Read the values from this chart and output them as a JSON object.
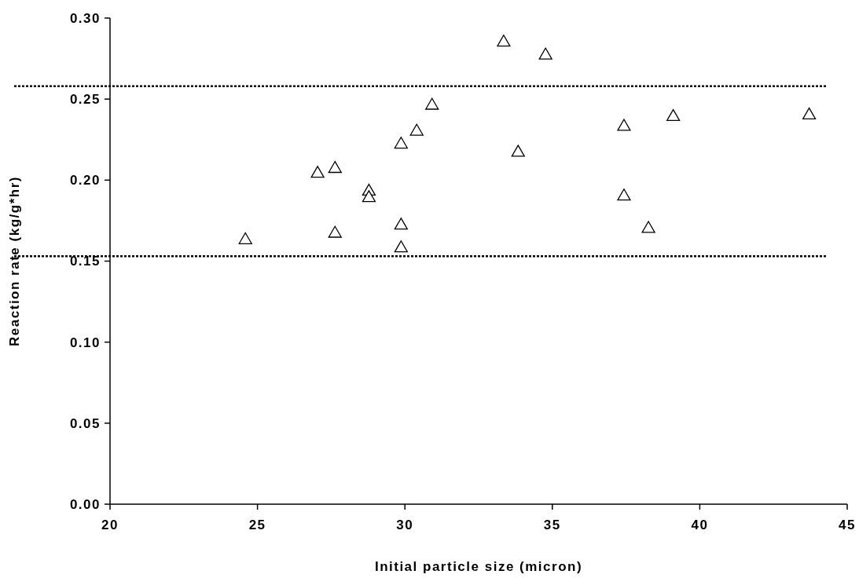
{
  "chart_data": {
    "type": "scatter",
    "xlabel": "Initial particle size (micron)",
    "ylabel": "Reaction rate (kg/g*hr)",
    "xlim": [
      20,
      45
    ],
    "xticks": [
      20,
      25,
      30,
      35,
      40,
      45
    ],
    "ylim": [
      0,
      0.3
    ],
    "yticks": [
      {
        "value": 0,
        "label": "0.00"
      },
      {
        "value": 0.05,
        "label": "0.05"
      },
      {
        "value": 0.1,
        "label": "0.10"
      },
      {
        "value": 0.15,
        "label": "0.15"
      },
      {
        "value": 0.2,
        "label": "0.20"
      },
      {
        "value": 0.25,
        "label": "0.25"
      },
      {
        "value": 0.3,
        "label": "0.30"
      }
    ],
    "marker": "triangle",
    "grid": false,
    "series": [
      {
        "color": "#000000",
        "x": [
          24.59,
          27.04,
          27.63,
          27.63,
          28.78,
          28.78,
          29.87,
          29.87,
          29.87,
          30.4,
          30.92,
          33.35,
          34.77,
          33.84,
          37.43,
          39.1,
          43.71,
          37.43,
          38.26
        ],
        "values": [
          0.163,
          0.204,
          0.207,
          0.167,
          0.193,
          0.189,
          0.222,
          0.172,
          0.158,
          0.23,
          0.246,
          0.285,
          0.277,
          0.217,
          0.233,
          0.239,
          0.24,
          0.19,
          0.17
        ]
      }
    ],
    "ref_lines": [
      {
        "axis": "y",
        "value": 0.258,
        "line_style": "dotted",
        "color": "#000000"
      },
      {
        "axis": "y",
        "value": 0.153,
        "line_style": "dotted",
        "color": "#000000"
      }
    ]
  }
}
